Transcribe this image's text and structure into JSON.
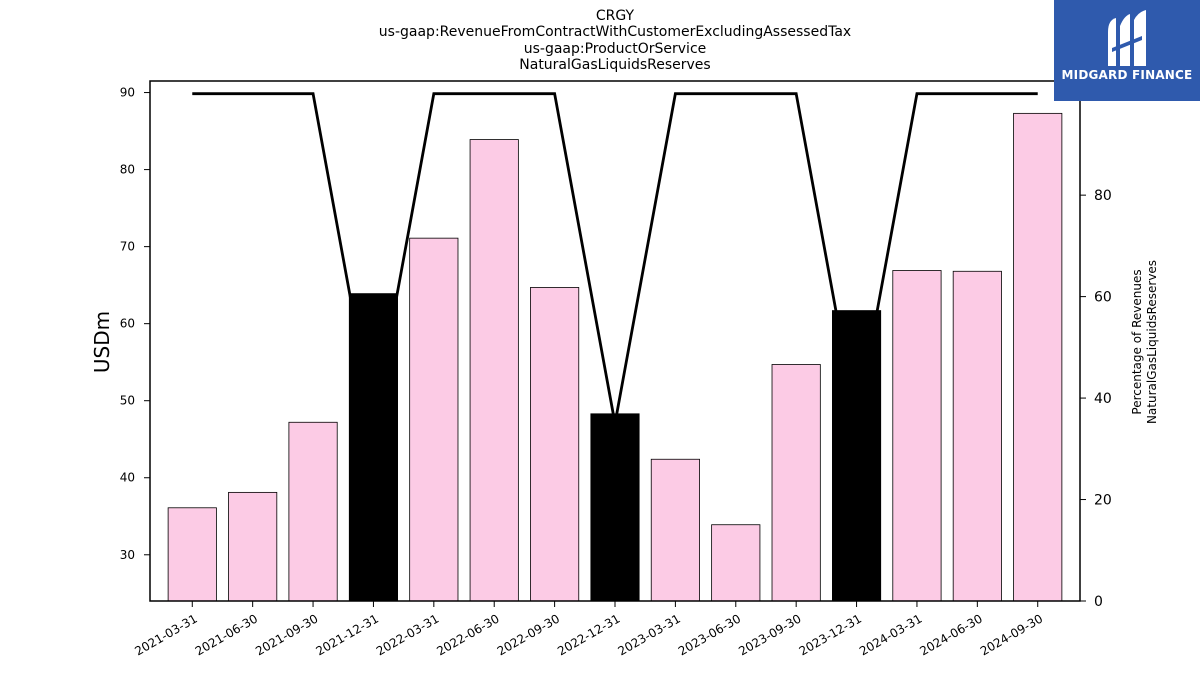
{
  "title_lines": [
    "CRGY",
    "us-gaap:RevenueFromContractWithCustomerExcludingAssessedTax",
    "us-gaap:ProductOrService",
    "NaturalGasLiquidsReserves"
  ],
  "logo": {
    "text": "MIDGARD FINANCE",
    "icon": "midgard-logo-icon",
    "bg_color": "#2f5aad"
  },
  "chart_data": {
    "type": "bar",
    "categories": [
      "2021-03-31",
      "2021-06-30",
      "2021-09-30",
      "2021-12-31",
      "2022-03-31",
      "2022-06-30",
      "2022-09-30",
      "2022-12-31",
      "2023-03-31",
      "2023-06-30",
      "2023-09-30",
      "2023-12-31",
      "2024-03-31",
      "2024-06-30",
      "2024-09-30"
    ],
    "series": [
      {
        "type": "bar",
        "axis": "left",
        "values": [
          36.1,
          38.1,
          47.2,
          63.9,
          71.1,
          83.9,
          64.7,
          48.3,
          42.4,
          33.9,
          54.7,
          61.7,
          66.9,
          66.8,
          87.3
        ],
        "colors": [
          "#fccbe5",
          "#fccbe5",
          "#fccbe5",
          "#000000",
          "#fccbe5",
          "#fccbe5",
          "#fccbe5",
          "#000000",
          "#fccbe5",
          "#fccbe5",
          "#fccbe5",
          "#000000",
          "#fccbe5",
          "#fccbe5",
          "#fccbe5"
        ]
      },
      {
        "type": "line",
        "axis": "right",
        "color": "#000000",
        "values": [
          100,
          100,
          100,
          35,
          100,
          100,
          100,
          35,
          100,
          100,
          100,
          35,
          100,
          100,
          100
        ]
      }
    ],
    "ylabel": "USDm",
    "ylim": [
      24,
      91.5
    ],
    "yticks": [
      30,
      40,
      50,
      60,
      70,
      80,
      90
    ],
    "y2label_lines": [
      "Percentage of Revenues",
      "NaturalGasLiquidsReserves"
    ],
    "y2lim": [
      0,
      102.5
    ],
    "y2ticks": [
      0,
      20,
      40,
      60,
      80,
      100
    ],
    "grid": false,
    "legend": "none"
  }
}
